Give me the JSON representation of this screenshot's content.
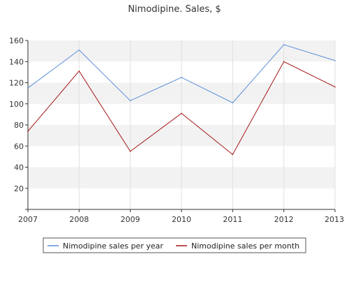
{
  "chart_data": {
    "type": "line",
    "title": "Nimodipine. Sales, $",
    "xlabel": "",
    "ylabel": "",
    "categories": [
      "2007",
      "2008",
      "2009",
      "2010",
      "2011",
      "2012",
      "2013"
    ],
    "y_ticks": [
      "20",
      "40",
      "60",
      "80",
      "100",
      "120",
      "140",
      "160"
    ],
    "ylim": [
      0,
      160
    ],
    "grid": true,
    "legend_position": "bottom",
    "series": [
      {
        "name": "Nimodipine sales per year",
        "color": "#5b8fd9",
        "values": [
          115,
          151,
          103,
          125,
          101,
          156,
          141
        ]
      },
      {
        "name": "Nimodipine sales per month",
        "color": "#a31515",
        "values": [
          74,
          131,
          55,
          91,
          52,
          140,
          116
        ]
      }
    ]
  }
}
